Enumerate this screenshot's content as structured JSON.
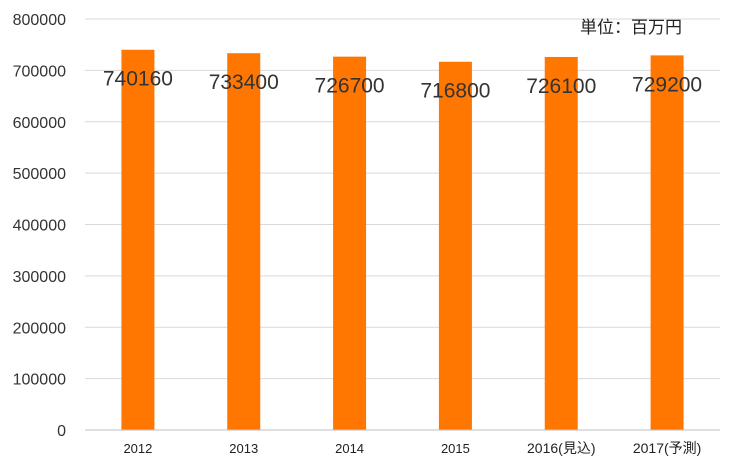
{
  "chart_data": {
    "type": "bar",
    "title": "",
    "xlabel": "",
    "ylabel": "",
    "unit_note": "単位：百万円",
    "categories": [
      "2012",
      "2013",
      "2014",
      "2015",
      "2016(見込)",
      "2017(予測)"
    ],
    "series": [
      {
        "values": [
          740160,
          733400,
          726700,
          716800,
          726100,
          729200
        ],
        "color": "#FF7700"
      }
    ],
    "data_labels": [
      "740160",
      "733400",
      "726700",
      "716800",
      "726100",
      "729200"
    ],
    "ylim": [
      0,
      800000
    ],
    "y_ticks": [
      0,
      100000,
      200000,
      300000,
      400000,
      500000,
      600000,
      700000,
      800000
    ],
    "y_tick_labels": [
      "0",
      "100000",
      "200000",
      "300000",
      "400000",
      "500000",
      "600000",
      "700000",
      "800000"
    ],
    "grid": true,
    "grid_color": "#d9d9d9",
    "axis_color": "#bfbfbf",
    "legend": "none"
  }
}
